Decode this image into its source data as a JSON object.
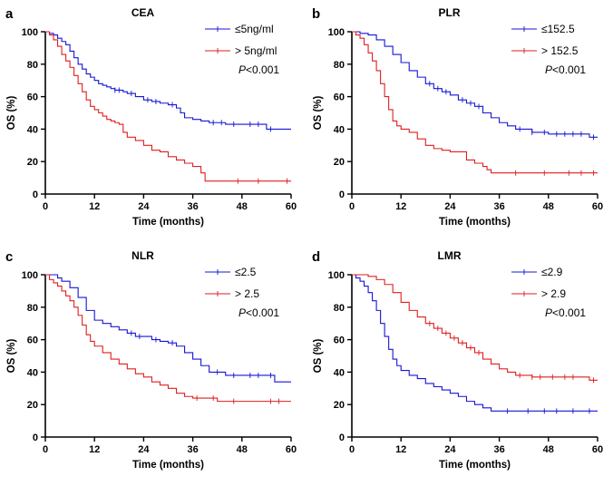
{
  "figure": {
    "axis_labels": {
      "x": "Time (months)",
      "y": "OS (%)"
    },
    "x_ticks": [
      0,
      12,
      24,
      36,
      48,
      60
    ],
    "y_ticks": [
      0,
      20,
      40,
      60,
      80,
      100
    ],
    "xlim": [
      0,
      60
    ],
    "ylim": [
      0,
      100
    ]
  },
  "chart_data": [
    {
      "type": "line",
      "letter": "a",
      "title": "CEA",
      "xlabel": "Time (months)",
      "ylabel": "OS (%)",
      "xlim": [
        0,
        60
      ],
      "ylim": [
        0,
        100
      ],
      "pvalue": {
        "p": "P",
        "rest": "<0.001"
      },
      "legend_position": "top-right",
      "series": [
        {
          "name": "≤5ng/ml",
          "color": "#1515d6",
          "x": [
            0,
            1,
            2,
            3,
            4,
            5,
            6,
            7,
            8,
            9,
            10,
            11,
            12,
            13,
            14,
            15,
            16,
            17,
            18,
            19,
            20,
            22,
            24,
            26,
            28,
            30,
            32,
            33,
            34,
            36,
            38,
            40,
            44,
            48,
            54,
            56,
            60
          ],
          "y": [
            100,
            99,
            98,
            96,
            94,
            92,
            88,
            84,
            80,
            77,
            74,
            72,
            70,
            68,
            67,
            66,
            65,
            64,
            64,
            63,
            62,
            60,
            58,
            57,
            56,
            55,
            53,
            50,
            47,
            46,
            45,
            44,
            43,
            43,
            40,
            40,
            40
          ],
          "censored": [
            17,
            18,
            21,
            25,
            27,
            31,
            41,
            43,
            46,
            50,
            52,
            55
          ]
        },
        {
          "name": "> 5ng/ml",
          "color": "#e01e1e",
          "x": [
            0,
            1,
            2,
            3,
            4,
            5,
            6,
            7,
            8,
            9,
            10,
            11,
            12,
            13,
            14,
            15,
            16,
            17,
            18,
            19,
            20,
            22,
            24,
            26,
            28,
            30,
            32,
            34,
            36,
            38,
            39,
            40,
            60
          ],
          "y": [
            100,
            98,
            95,
            91,
            86,
            82,
            78,
            73,
            68,
            63,
            58,
            54,
            52,
            50,
            48,
            46,
            45,
            44,
            43,
            38,
            35,
            33,
            30,
            27,
            26,
            23,
            21,
            19,
            17,
            13,
            8,
            8,
            8
          ],
          "censored": [
            47,
            52,
            59
          ]
        }
      ]
    },
    {
      "type": "line",
      "letter": "b",
      "title": "PLR",
      "xlabel": "Time (months)",
      "ylabel": "OS (%)",
      "xlim": [
        0,
        60
      ],
      "ylim": [
        0,
        100
      ],
      "pvalue": {
        "p": "P",
        "rest": "<0.001"
      },
      "legend_position": "top-right",
      "series": [
        {
          "name": "≤152.5",
          "color": "#1515d6",
          "x": [
            0,
            2,
            4,
            6,
            8,
            10,
            12,
            14,
            16,
            18,
            20,
            22,
            24,
            26,
            28,
            30,
            32,
            34,
            36,
            38,
            40,
            44,
            48,
            52,
            56,
            58,
            60
          ],
          "y": [
            100,
            99,
            98,
            95,
            91,
            86,
            81,
            76,
            72,
            68,
            65,
            63,
            61,
            58,
            56,
            54,
            50,
            47,
            44,
            42,
            40,
            38,
            37,
            37,
            37,
            35,
            35
          ],
          "censored": [
            19,
            21,
            23,
            27,
            29,
            31,
            41,
            44,
            47,
            50,
            52,
            54,
            56,
            59
          ]
        },
        {
          "name": "> 152.5",
          "color": "#e01e1e",
          "x": [
            0,
            1,
            2,
            3,
            4,
            5,
            6,
            7,
            8,
            9,
            10,
            11,
            12,
            14,
            16,
            18,
            20,
            22,
            24,
            28,
            30,
            32,
            33,
            34,
            60
          ],
          "y": [
            100,
            98,
            96,
            92,
            87,
            82,
            76,
            68,
            60,
            52,
            45,
            42,
            40,
            38,
            34,
            30,
            28,
            27,
            26,
            21,
            19,
            17,
            15,
            13,
            13
          ],
          "censored": [
            40,
            47,
            53,
            56,
            59
          ]
        }
      ]
    },
    {
      "type": "line",
      "letter": "c",
      "title": "NLR",
      "xlabel": "Time (months)",
      "ylabel": "OS (%)",
      "xlim": [
        0,
        60
      ],
      "ylim": [
        0,
        100
      ],
      "pvalue": {
        "p": "P",
        "rest": "<0.001"
      },
      "legend_position": "top-right",
      "series": [
        {
          "name": "≤2.5",
          "color": "#1515d6",
          "x": [
            0,
            2,
            3,
            4,
            6,
            8,
            10,
            12,
            14,
            16,
            18,
            20,
            22,
            24,
            26,
            28,
            30,
            32,
            34,
            36,
            38,
            40,
            44,
            48,
            54,
            56,
            60
          ],
          "y": [
            100,
            100,
            98,
            96,
            92,
            86,
            78,
            72,
            70,
            68,
            66,
            64,
            62,
            62,
            60,
            59,
            58,
            56,
            52,
            48,
            44,
            40,
            38,
            38,
            38,
            34,
            34
          ],
          "censored": [
            21,
            23,
            27,
            31,
            42,
            46,
            50,
            52,
            55
          ]
        },
        {
          "name": "> 2.5",
          "color": "#e01e1e",
          "x": [
            0,
            1,
            2,
            3,
            4,
            5,
            6,
            7,
            8,
            9,
            10,
            11,
            12,
            14,
            16,
            18,
            20,
            22,
            24,
            26,
            28,
            30,
            32,
            34,
            36,
            40,
            42,
            44,
            60
          ],
          "y": [
            100,
            97,
            95,
            93,
            90,
            87,
            84,
            80,
            75,
            69,
            63,
            59,
            56,
            52,
            48,
            45,
            42,
            39,
            37,
            34,
            32,
            30,
            27,
            25,
            24,
            24,
            22,
            22,
            22
          ],
          "censored": [
            37,
            41,
            46,
            55,
            57
          ]
        }
      ]
    },
    {
      "type": "line",
      "letter": "d",
      "title": "LMR",
      "xlabel": "Time (months)",
      "ylabel": "OS (%)",
      "xlim": [
        0,
        60
      ],
      "ylim": [
        0,
        100
      ],
      "pvalue": {
        "p": "P",
        "rest": "<0.001"
      },
      "legend_position": "top-right",
      "series": [
        {
          "name": "≤2.9",
          "color": "#1515d6",
          "x": [
            0,
            1,
            2,
            3,
            4,
            5,
            6,
            7,
            8,
            9,
            10,
            11,
            12,
            14,
            16,
            18,
            20,
            22,
            24,
            26,
            28,
            30,
            32,
            34,
            60
          ],
          "y": [
            100,
            98,
            96,
            93,
            89,
            84,
            78,
            70,
            62,
            54,
            48,
            44,
            41,
            38,
            36,
            33,
            31,
            29,
            27,
            25,
            22,
            20,
            18,
            16,
            16
          ],
          "censored": [
            38,
            43,
            47,
            50,
            54,
            58
          ]
        },
        {
          "name": "> 2.9",
          "color": "#e01e1e",
          "x": [
            0,
            2,
            4,
            6,
            8,
            10,
            12,
            14,
            16,
            18,
            20,
            22,
            24,
            26,
            28,
            30,
            32,
            34,
            36,
            38,
            40,
            44,
            48,
            52,
            56,
            58,
            60
          ],
          "y": [
            100,
            100,
            99,
            97,
            94,
            89,
            83,
            78,
            74,
            70,
            67,
            64,
            61,
            58,
            55,
            52,
            48,
            45,
            42,
            40,
            38,
            37,
            37,
            37,
            37,
            35,
            35
          ],
          "censored": [
            19,
            21,
            23,
            25,
            27,
            29,
            31,
            41,
            44,
            46,
            49,
            52,
            54,
            59
          ]
        }
      ]
    }
  ]
}
